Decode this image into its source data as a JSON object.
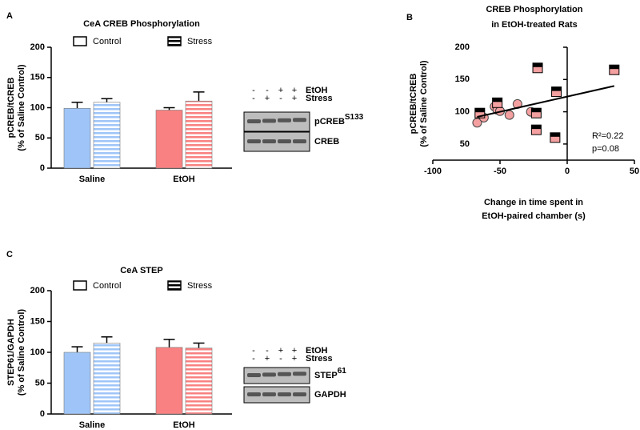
{
  "chart_data": [
    {
      "panel": "A",
      "type": "bar",
      "title": "CeA CREB Phosphorylation",
      "ylabel": [
        "pCREB/tCREB",
        "(% of Saline Control)"
      ],
      "categories": [
        "Saline",
        "EtOH"
      ],
      "category_colors": [
        "#9fc5f8",
        "#f98181"
      ],
      "series": [
        {
          "name": "Control",
          "pattern": "solid",
          "values": [
            99,
            96
          ],
          "errors": [
            10,
            4
          ]
        },
        {
          "name": "Stress",
          "pattern": "stripes",
          "values": [
            109,
            111
          ],
          "errors": [
            6,
            15
          ]
        }
      ],
      "ylim": [
        0,
        200
      ],
      "yticks": [
        0,
        50,
        100,
        150,
        200
      ],
      "blot": {
        "treatments": [
          {
            "label": "EtOH",
            "signs": [
              "-",
              "-",
              "+",
              "+"
            ]
          },
          {
            "label": "Stress",
            "signs": [
              "-",
              "+",
              "-",
              "+"
            ]
          }
        ],
        "bands": [
          {
            "label": "pCREB",
            "superscript": "S133"
          },
          {
            "label": "CREB"
          }
        ]
      }
    },
    {
      "panel": "B",
      "type": "scatter",
      "title": [
        "CREB Phosphorylation",
        "in EtOH-treated Rats"
      ],
      "ylabel": [
        "pCREB/tCREB",
        "(% of Saline Control)"
      ],
      "xlabel": [
        "Change in time spent in",
        "EtOH-paired chamber (s)"
      ],
      "series": [
        {
          "marker": "circle",
          "color": "#f4a0a0",
          "x": [
            -67,
            -62,
            -54,
            -52,
            -50,
            -43,
            -37,
            -27
          ],
          "y": [
            83,
            91,
            108,
            103,
            101,
            95,
            112,
            100
          ]
        },
        {
          "marker": "square",
          "color": "#f4a0a0",
          "x": [
            -65,
            -52,
            -22,
            -8,
            -23,
            -23,
            -9,
            35
          ],
          "y": [
            98,
            114,
            168,
            131,
            98,
            72,
            60,
            165
          ]
        }
      ],
      "fit": {
        "x": [
          -67,
          35
        ],
        "y": [
          92,
          140
        ]
      },
      "annotations": [
        "R²=0.22",
        "p=0.08"
      ],
      "xlim": [
        -100,
        50
      ],
      "xticks": [
        -100,
        -50,
        0,
        50
      ],
      "ylim": [
        25,
        200
      ],
      "yticks": [
        50,
        100,
        150,
        200
      ],
      "y_axis_at": 0
    },
    {
      "panel": "C",
      "type": "bar",
      "title": "CeA STEP",
      "ylabel": [
        "STEP61/GAPDH",
        "(% of Saline Control)"
      ],
      "categories": [
        "Saline",
        "EtOH"
      ],
      "category_colors": [
        "#9fc5f8",
        "#f98181"
      ],
      "series": [
        {
          "name": "Control",
          "pattern": "solid",
          "values": [
            100,
            108
          ],
          "errors": [
            9,
            13
          ]
        },
        {
          "name": "Stress",
          "pattern": "stripes",
          "values": [
            115,
            107
          ],
          "errors": [
            10,
            8
          ]
        }
      ],
      "ylim": [
        0,
        200
      ],
      "yticks": [
        0,
        50,
        100,
        150,
        200
      ],
      "blot": {
        "treatments": [
          {
            "label": "EtOH",
            "signs": [
              "-",
              "-",
              "+",
              "+"
            ]
          },
          {
            "label": "Stress",
            "signs": [
              "-",
              "+",
              "-",
              "+"
            ]
          }
        ],
        "bands": [
          {
            "label": "STEP",
            "superscript": "61"
          },
          {
            "label": "GAPDH"
          }
        ]
      }
    }
  ]
}
